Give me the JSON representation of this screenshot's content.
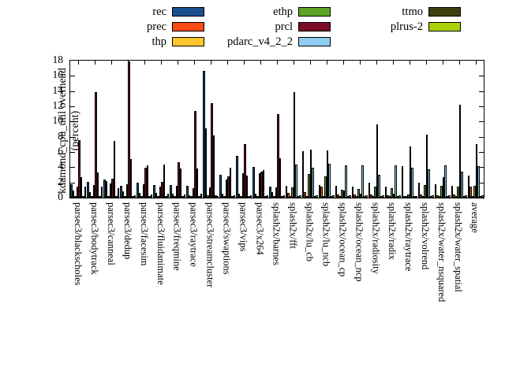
{
  "figure": {
    "ylabel_line1": "kdamond_cpu_util overhead",
    "ylabel_line2": "(percent)"
  },
  "chart_data": {
    "type": "bar",
    "title": "",
    "xlabel": "",
    "ylabel": "kdamond_cpu_util overhead (percent)",
    "ylim": [
      0,
      18
    ],
    "ytick_step": 2,
    "grid": false,
    "legend_position": "top-outside",
    "legend_columns": [
      [
        "rec",
        "prec",
        "thp"
      ],
      [
        "ethp",
        "prcl",
        "pdarc_v4_2_2"
      ],
      [
        "ttmo",
        "plrus-2"
      ]
    ],
    "categories": [
      "parsec3/blackscholes",
      "parsec3/bodytrack",
      "parsec3/canneal",
      "parsec3/dedup",
      "parsec3/facesim",
      "parsec3/fluidanimate",
      "parsec3/freqmine",
      "parsec3/raytrace",
      "parsec3/streamcluster",
      "parsec3/swaptions",
      "parsec3/vips",
      "parsec3/x264",
      "splash2x/barnes",
      "splash2x/fft",
      "splash2x/lu_cb",
      "splash2x/lu_ncb",
      "splash2x/ocean_cp",
      "splash2x/ocean_ncp",
      "splash2x/radiosity",
      "splash2x/radix",
      "splash2x/raytrace",
      "splash2x/volrend",
      "splash2x/water_nsquared",
      "splash2x/water_spatial",
      "average"
    ],
    "series": [
      {
        "name": "rec",
        "color": "#1b4f8e",
        "values": [
          1.8,
          2.1,
          2.4,
          1.6,
          2.0,
          1.7,
          1.7,
          1.6,
          16.7,
          3.0,
          5.5,
          4.0,
          1.5,
          1.6,
          6.1,
          1.7,
          1.6,
          1.5,
          2.0,
          1.5,
          4.1,
          2.0,
          1.8,
          1.6,
          2.9
        ]
      },
      {
        "name": "prec",
        "color": "#fc4a14",
        "values": [
          0.9,
          0.7,
          2.2,
          0.8,
          0.6,
          0.6,
          0.5,
          0.35,
          9.1,
          0.5,
          0.5,
          0.5,
          0.75,
          0.6,
          0.7,
          1.4,
          0.4,
          0.45,
          0.4,
          0.35,
          0.25,
          0.4,
          0.3,
          0.4,
          1.4
        ]
      },
      {
        "name": "thp",
        "color": "#fdc62f",
        "values": [
          0.2,
          0.25,
          0.25,
          0.1,
          0.1,
          0.1,
          0.1,
          0.05,
          0.3,
          0.1,
          0.1,
          0.1,
          0.1,
          0.1,
          0.1,
          0.1,
          0.1,
          0.1,
          0.1,
          0.1,
          0.05,
          0.1,
          0.1,
          0.1,
          0.15
        ]
      },
      {
        "name": "ethp",
        "color": "#5ea327",
        "values": [
          1.5,
          1.7,
          1.9,
          1.8,
          1.8,
          1.45,
          1.6,
          1.2,
          1.3,
          2.4,
          3.2,
          3.2,
          1.3,
          1.3,
          3.1,
          2.8,
          1.0,
          1.1,
          1.5,
          1.2,
          0.4,
          1.7,
          1.6,
          1.45,
          1.6
        ]
      },
      {
        "name": "prcl",
        "color": "#7a0d28",
        "values": [
          7.6,
          13.9,
          2.5,
          17.9,
          3.9,
          2.1,
          4.65,
          11.4,
          12.4,
          2.8,
          7.0,
          3.4,
          11.0,
          13.9,
          6.3,
          6.2,
          0.9,
          0.5,
          9.6,
          0.5,
          6.7,
          8.3,
          2.7,
          12.2,
          7.0
        ]
      },
      {
        "name": "pdarc_v4_2_2",
        "color": "#8ecdf0",
        "values": [
          2.7,
          3.3,
          7.5,
          5.1,
          4.2,
          4.3,
          3.8,
          3.8,
          8.2,
          3.9,
          2.9,
          3.6,
          5.2,
          4.3,
          3.9,
          4.4,
          4.2,
          4.2,
          3.0,
          4.2,
          3.9,
          3.7,
          4.2,
          3.45,
          4.1
        ]
      },
      {
        "name": "ttmo",
        "color": "#3c400f",
        "values": [
          0.15,
          0.2,
          0.25,
          0.1,
          0.1,
          0.1,
          0.1,
          0.05,
          0.3,
          0.1,
          0.1,
          0.1,
          0.1,
          0.1,
          0.1,
          0.1,
          0.1,
          0.1,
          0.1,
          0.1,
          0.05,
          0.1,
          0.1,
          0.1,
          0.1
        ]
      },
      {
        "name": "plrus-2",
        "color": "#a9d108",
        "values": [
          1.4,
          1.5,
          1.2,
          0.3,
          0.4,
          0.5,
          0.4,
          0.5,
          0.2,
          0.3,
          0.3,
          0.3,
          0.3,
          0.3,
          0.3,
          0.3,
          0.3,
          0.3,
          0.3,
          0.3,
          0.2,
          0.3,
          0.3,
          0.3,
          0.3
        ]
      }
    ]
  }
}
